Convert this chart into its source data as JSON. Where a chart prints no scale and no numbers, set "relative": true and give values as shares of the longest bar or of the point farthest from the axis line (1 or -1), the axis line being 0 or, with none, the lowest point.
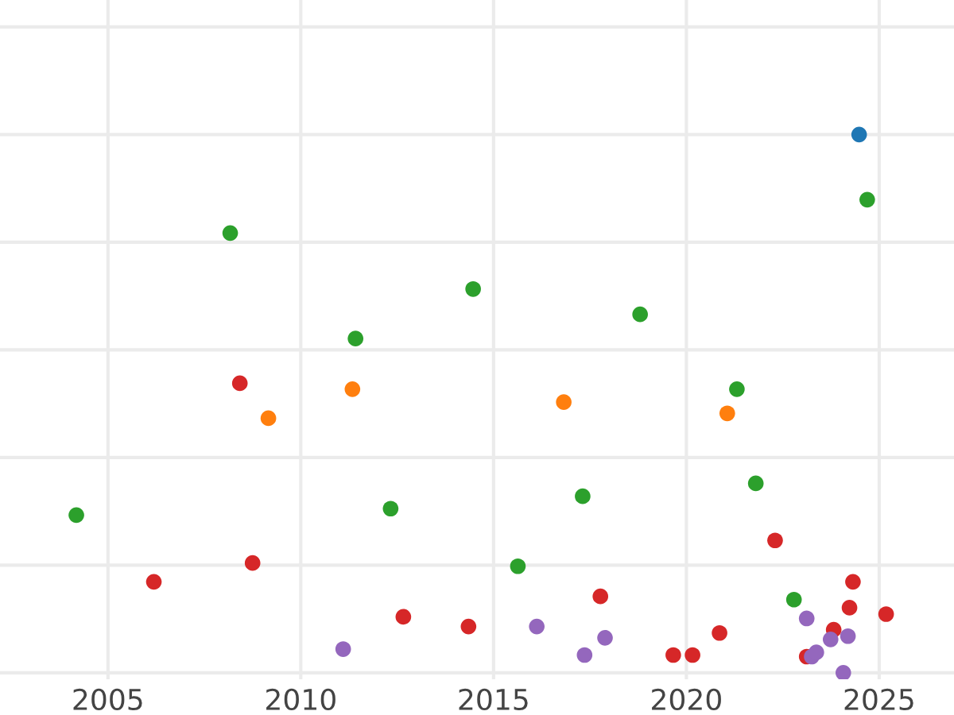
{
  "chart_data": {
    "type": "scatter",
    "relative": true,
    "grid": true,
    "tick_labels": "x",
    "marker": "circle",
    "xlim": [
      2002.2,
      2026.94
    ],
    "xticks": [
      2005,
      2010,
      2015,
      2020,
      2025
    ],
    "series": [
      {
        "color": "#2ca02c",
        "x": [
          2004.18,
          2008.17,
          2011.42,
          2012.33,
          2014.47,
          2015.63,
          2017.31,
          2018.8,
          2021.31,
          2021.8,
          2022.79,
          2024.69
        ],
        "values": [
          0.293,
          0.817,
          0.621,
          0.305,
          0.713,
          0.198,
          0.328,
          0.666,
          0.527,
          0.352,
          0.136,
          0.879
        ]
      },
      {
        "color": "#1f77b4",
        "x": [
          2024.48
        ],
        "values": [
          1
        ]
      },
      {
        "color": "#ff7f0e",
        "x": [
          2009.16,
          2011.34,
          2016.82,
          2021.06
        ],
        "values": [
          0.473,
          0.527,
          0.503,
          0.482
        ]
      },
      {
        "color": "#d62728",
        "x": [
          2006.19,
          2008.42,
          2008.75,
          2012.66,
          2014.35,
          2017.77,
          2019.66,
          2020.16,
          2020.86,
          2022.3,
          2023.12,
          2023.82,
          2024.23,
          2024.32,
          2025.18
        ],
        "values": [
          0.169,
          0.538,
          0.204,
          0.104,
          0.086,
          0.142,
          0.033,
          0.033,
          0.074,
          0.246,
          0.03,
          0.08,
          0.121,
          0.169,
          0.109
        ]
      },
      {
        "color": "#9467bd",
        "x": [
          2011.1,
          2016.12,
          2017.36,
          2017.89,
          2023.12,
          2023.25,
          2023.37,
          2023.74,
          2024.07,
          2024.19
        ],
        "values": [
          0.044,
          0.086,
          0.033,
          0.065,
          0.101,
          0.03,
          0.038,
          0.062,
          0,
          0.068
        ]
      }
    ]
  }
}
